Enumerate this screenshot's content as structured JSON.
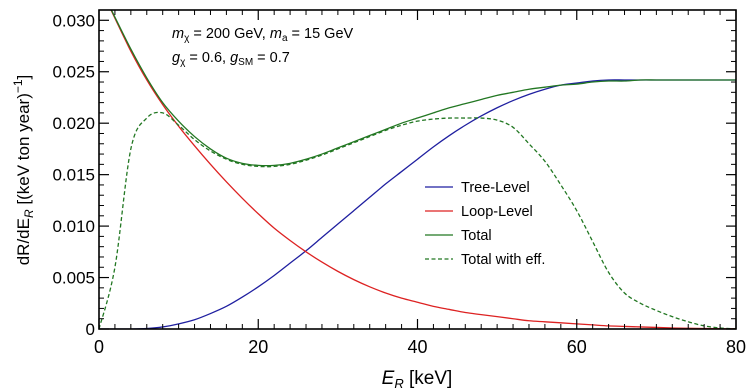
{
  "chart_data": {
    "type": "line",
    "xlabel": "E_R [keV]",
    "ylabel": "dR/dE_R [(keV ton year)^-1]",
    "xlim": [
      0,
      80
    ],
    "ylim": [
      0,
      0.031
    ],
    "x_ticks": [
      "0",
      "20",
      "40",
      "60",
      "80"
    ],
    "y_ticks": [
      "0",
      "0.005",
      "0.010",
      "0.015",
      "0.020",
      "0.025",
      "0.030"
    ],
    "grid": false,
    "legend_position": "center-right",
    "annotation": {
      "line1": {
        "m_chi_label": "m",
        "m_chi_sub": "χ",
        "m_chi_value": " = 200 GeV, ",
        "m_a_label": "m",
        "m_a_sub": "a",
        "m_a_value": " = 15 GeV"
      },
      "line2": {
        "g_chi_label": "g",
        "g_chi_sub": "χ",
        "g_chi_value": " = 0.6, ",
        "g_sm_label": "g",
        "g_sm_sub": "SM",
        "g_sm_value": " = 0.7"
      }
    },
    "x": [
      0,
      2,
      4,
      6,
      8,
      10,
      12,
      14,
      16,
      18,
      20,
      22,
      24,
      26,
      28,
      30,
      32,
      34,
      36,
      38,
      40,
      42,
      44,
      46,
      48,
      50,
      52,
      54,
      56,
      58,
      60,
      62,
      64,
      66,
      68,
      70,
      72,
      74,
      76,
      78,
      80
    ],
    "series": [
      {
        "name": "Tree-Level",
        "color": "#1f1fa0",
        "dash": "solid",
        "values": [
          0,
          0,
          0,
          5e-05,
          0.0002,
          0.0005,
          0.0009,
          0.0015,
          0.0022,
          0.0031,
          0.0041,
          0.0052,
          0.0064,
          0.0076,
          0.0089,
          0.0102,
          0.0115,
          0.0128,
          0.0141,
          0.0153,
          0.0165,
          0.0177,
          0.0188,
          0.0198,
          0.0207,
          0.0215,
          0.0222,
          0.0228,
          0.0233,
          0.0237,
          0.0239,
          0.0241,
          0.0242,
          0.0242,
          0.0242,
          0.0242,
          0.0242,
          0.0242,
          0.0242,
          0.0242,
          0.0242
        ]
      },
      {
        "name": "Loop-Level",
        "color": "#dd2222",
        "dash": "solid",
        "values": [
          0.0335,
          0.0302,
          0.027,
          0.0242,
          0.0218,
          0.0197,
          0.0178,
          0.016,
          0.0143,
          0.0127,
          0.0112,
          0.0098,
          0.0086,
          0.0075,
          0.0065,
          0.0056,
          0.0048,
          0.0041,
          0.0035,
          0.003,
          0.0026,
          0.0022,
          0.0019,
          0.0016,
          0.0014,
          0.0012,
          0.001,
          0.0008,
          0.0007,
          0.0006,
          0.0005,
          0.0004,
          0.0003,
          0.00025,
          0.0002,
          0.00015,
          0.0001,
          7e-05,
          5e-05,
          3e-05,
          2e-05
        ]
      },
      {
        "name": "Total",
        "color": "#227722",
        "dash": "solid",
        "values": [
          0.0335,
          0.0303,
          0.0272,
          0.0244,
          0.022,
          0.0202,
          0.0187,
          0.0175,
          0.0166,
          0.0161,
          0.0159,
          0.0159,
          0.0161,
          0.0165,
          0.017,
          0.0176,
          0.0182,
          0.0188,
          0.0194,
          0.02,
          0.0205,
          0.021,
          0.0215,
          0.0219,
          0.0223,
          0.0227,
          0.023,
          0.0233,
          0.0235,
          0.0237,
          0.0238,
          0.024,
          0.0241,
          0.0241,
          0.0242,
          0.0242,
          0.0242,
          0.0242,
          0.0242,
          0.0242,
          0.0242
        ]
      },
      {
        "name": "Total with eff.",
        "color": "#227722",
        "dash": "dashed",
        "values": [
          0,
          0.006,
          0.0175,
          0.0205,
          0.021,
          0.0198,
          0.0184,
          0.0173,
          0.0165,
          0.016,
          0.0158,
          0.0158,
          0.016,
          0.0164,
          0.0169,
          0.0175,
          0.0181,
          0.0187,
          0.0193,
          0.0198,
          0.0202,
          0.0204,
          0.0205,
          0.0205,
          0.0205,
          0.0203,
          0.0196,
          0.018,
          0.0163,
          0.014,
          0.0115,
          0.0085,
          0.0055,
          0.0035,
          0.0025,
          0.0018,
          0.0012,
          0.0007,
          0.0003,
          0.0001,
          0.0
        ]
      }
    ]
  }
}
